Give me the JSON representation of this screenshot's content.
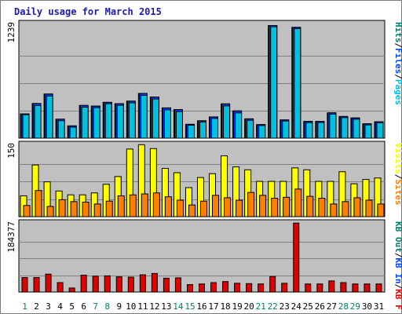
{
  "title": "Daily usage for March 2015",
  "colors": {
    "background": "#c0c0c0",
    "border": "#000000",
    "pages": "#00c0e0",
    "files": "#0044ff",
    "hits": "#007e6e",
    "visits": "#ffff00",
    "sites": "#ff8000",
    "kbin": "#0044ff",
    "kbout": "#007e6e",
    "kbf": "#e00000",
    "weekday_label": "#000000",
    "weekend_label": "#007e6e"
  },
  "chart_data": [
    {
      "type": "bar",
      "name": "hits-files-pages",
      "ylabel_parts": [
        "Pages",
        "Files",
        "Hits"
      ],
      "ylabel_colors": [
        "#00c0e0",
        "#0044ff",
        "#007e6e"
      ],
      "max_label": "1239",
      "ylim": [
        0,
        1239
      ],
      "categories": [
        "1",
        "2",
        "3",
        "4",
        "5",
        "6",
        "7",
        "8",
        "9",
        "10",
        "11",
        "12",
        "13",
        "14",
        "15",
        "16",
        "17",
        "18",
        "19",
        "20",
        "21",
        "22",
        "23",
        "24",
        "25",
        "26",
        "27",
        "28",
        "29",
        "30",
        "31"
      ],
      "series": [
        {
          "name": "Hits",
          "values": [
            270,
            384,
            488,
            212,
            139,
            363,
            356,
            397,
            382,
            410,
            494,
            455,
            336,
            317,
            156,
            195,
            237,
            380,
            303,
            216,
            153,
            1239,
            204,
            1219,
            188,
            188,
            282,
            242,
            226,
            162,
            184
          ]
        },
        {
          "name": "Files",
          "values": [
            270,
            384,
            488,
            212,
            139,
            363,
            356,
            397,
            382,
            410,
            494,
            455,
            336,
            317,
            156,
            195,
            237,
            380,
            303,
            216,
            153,
            1239,
            204,
            1219,
            188,
            188,
            282,
            242,
            226,
            162,
            184
          ]
        },
        {
          "name": "Pages",
          "values": [
            262,
            362,
            466,
            196,
            125,
            344,
            339,
            382,
            364,
            392,
            473,
            433,
            315,
            295,
            146,
            181,
            221,
            358,
            281,
            200,
            143,
            1225,
            192,
            1205,
            175,
            176,
            268,
            229,
            212,
            150,
            173
          ]
        }
      ]
    },
    {
      "type": "bar",
      "name": "visits-sites",
      "ylabel_parts": [
        "Sites",
        "Visits"
      ],
      "ylabel_colors": [
        "#ff8000",
        "#ffff00"
      ],
      "max_label": "150",
      "ylim": [
        0,
        150
      ],
      "categories": [
        "1",
        "2",
        "3",
        "4",
        "5",
        "6",
        "7",
        "8",
        "9",
        "10",
        "11",
        "12",
        "13",
        "14",
        "15",
        "16",
        "17",
        "18",
        "19",
        "20",
        "21",
        "22",
        "23",
        "24",
        "25",
        "26",
        "27",
        "28",
        "29",
        "30",
        "31"
      ],
      "series": [
        {
          "name": "Visits",
          "values": [
            44,
            108,
            73,
            54,
            46,
            46,
            50,
            68,
            84,
            141,
            150,
            142,
            101,
            92,
            61,
            82,
            90,
            127,
            104,
            98,
            74,
            74,
            74,
            102,
            98,
            74,
            74,
            94,
            69,
            78,
            81
          ]
        },
        {
          "name": "Sites",
          "values": [
            24,
            55,
            22,
            36,
            32,
            31,
            27,
            33,
            44,
            46,
            48,
            50,
            42,
            35,
            25,
            33,
            45,
            40,
            35,
            51,
            45,
            39,
            41,
            58,
            43,
            39,
            27,
            32,
            40,
            35,
            27
          ]
        }
      ]
    },
    {
      "type": "bar",
      "name": "kbytes",
      "ylabel_parts": [
        "KB F",
        "KB In",
        "KB Out"
      ],
      "ylabel_colors": [
        "#e00000",
        "#0044ff",
        "#007e6e"
      ],
      "max_label": "184377",
      "ylim": [
        0,
        184377
      ],
      "categories": [
        "1",
        "2",
        "3",
        "4",
        "5",
        "6",
        "7",
        "8",
        "9",
        "10",
        "11",
        "12",
        "13",
        "14",
        "15",
        "16",
        "17",
        "18",
        "19",
        "20",
        "21",
        "22",
        "23",
        "24",
        "25",
        "26",
        "27",
        "28",
        "29",
        "30",
        "31"
      ],
      "series": [
        {
          "name": "KB F",
          "values": [
            39600,
            39600,
            48600,
            26100,
            11700,
            45900,
            43200,
            44100,
            41400,
            40500,
            46800,
            50400,
            37800,
            38700,
            20700,
            22500,
            26100,
            28800,
            24300,
            23400,
            22500,
            42300,
            24300,
            184377,
            22500,
            22500,
            30600,
            26100,
            22500,
            22500,
            22500
          ]
        }
      ]
    }
  ],
  "xaxis": {
    "labels": [
      "1",
      "2",
      "3",
      "4",
      "5",
      "6",
      "7",
      "8",
      "9",
      "10",
      "11",
      "12",
      "13",
      "14",
      "15",
      "16",
      "17",
      "18",
      "19",
      "20",
      "21",
      "22",
      "23",
      "24",
      "25",
      "26",
      "27",
      "28",
      "29",
      "30",
      "31"
    ],
    "weekend_days": [
      "1",
      "7",
      "8",
      "14",
      "15",
      "21",
      "22",
      "28",
      "29"
    ]
  }
}
